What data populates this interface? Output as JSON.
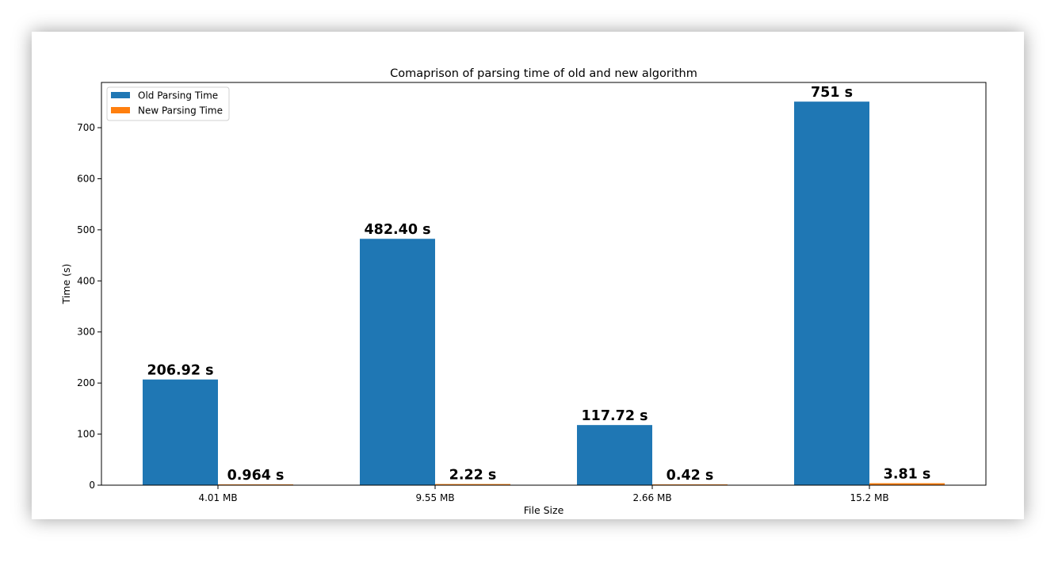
{
  "chart_data": {
    "type": "bar",
    "title": "Comaprison of parsing time of old and new algorithm",
    "xlabel": "File Size",
    "ylabel": "Time (s)",
    "categories": [
      "4.01 MB",
      "9.55 MB",
      "2.66 MB",
      "15.2 MB"
    ],
    "series": [
      {
        "name": "Old Parsing Time",
        "color": "#1f77b4",
        "values": [
          206.92,
          482.4,
          117.72,
          751
        ],
        "labels": [
          "206.92 s",
          "482.40 s",
          "117.72 s",
          "751 s"
        ]
      },
      {
        "name": "New Parsing Time",
        "color": "#ff7f0e",
        "values": [
          0.964,
          2.22,
          0.42,
          3.81
        ],
        "labels": [
          "0.964 s",
          "2.22 s",
          "0.42 s",
          "3.81 s"
        ]
      }
    ],
    "yticks": [
      0,
      100,
      200,
      300,
      400,
      500,
      600,
      700
    ],
    "ylim": [
      0,
      788.55
    ],
    "grid": false,
    "legend_position": "top-left"
  }
}
